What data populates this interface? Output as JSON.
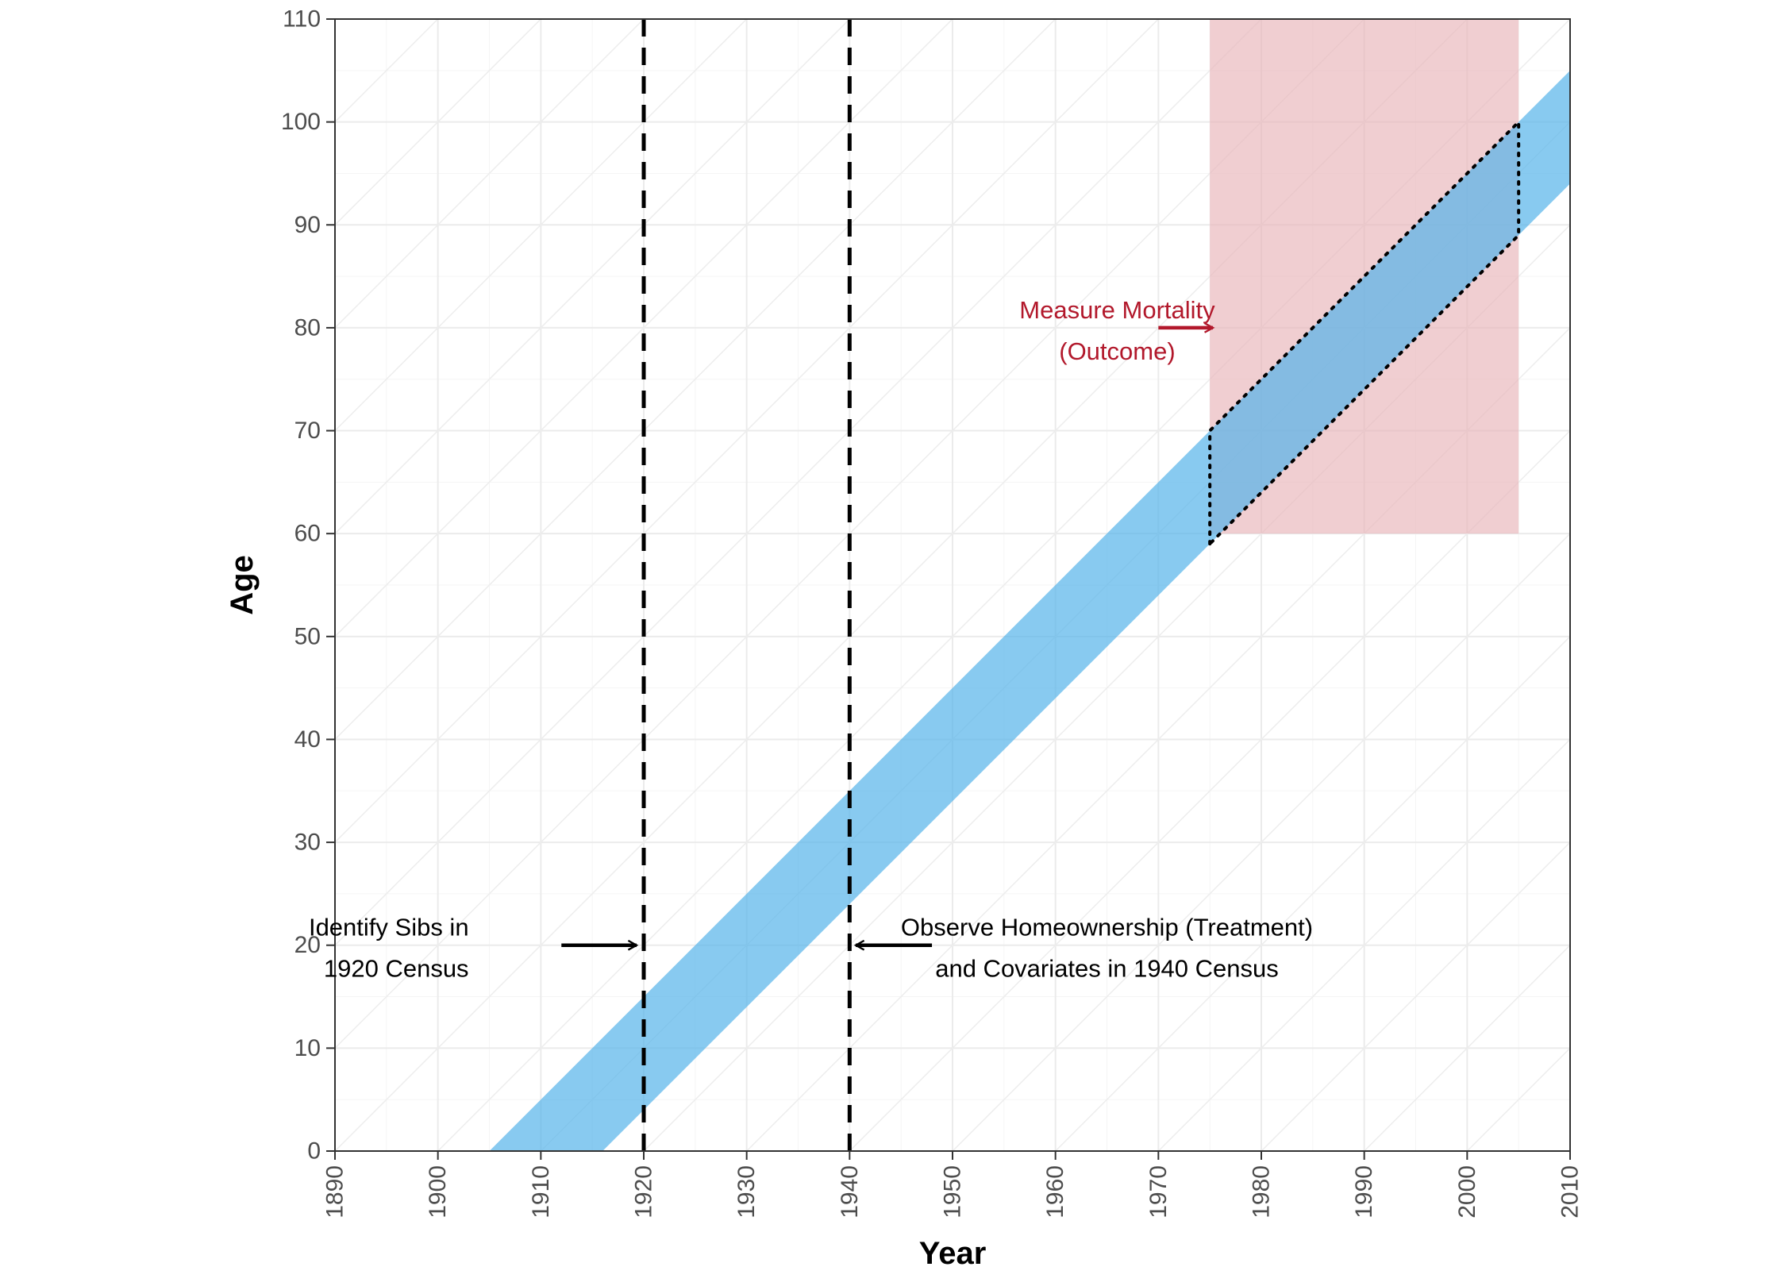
{
  "chart_data": {
    "type": "area",
    "title": "",
    "xlabel": "Year",
    "ylabel": "Age",
    "xlim": [
      1890,
      2010
    ],
    "ylim": [
      0,
      110
    ],
    "x_ticks": [
      1890,
      1900,
      1910,
      1920,
      1930,
      1940,
      1950,
      1960,
      1970,
      1980,
      1990,
      2000,
      2010
    ],
    "y_ticks": [
      0,
      10,
      20,
      30,
      40,
      50,
      60,
      70,
      80,
      90,
      100,
      110
    ],
    "grid": true,
    "legend": "none",
    "cohort_band": {
      "birth_year_start": 1905,
      "birth_year_end": 1916,
      "color": "#56B4E9"
    },
    "outcome_window": {
      "x": [
        1975,
        2005
      ],
      "y": [
        60,
        110
      ],
      "color": "#E8B4B8"
    },
    "observed_outcome_region": {
      "vertices": [
        [
          1975,
          59
        ],
        [
          1975,
          70
        ],
        [
          2005,
          100
        ],
        [
          2005,
          89
        ]
      ]
    },
    "vertical_lines": [
      {
        "x": 1920,
        "style": "dashed"
      },
      {
        "x": 1940,
        "style": "dashed"
      }
    ],
    "annotations": [
      {
        "id": "sibs",
        "lines": [
          "Identify Sibs in",
          "1920 Census"
        ],
        "x": 1903,
        "y": 20,
        "align": "end",
        "arrow_from": [
          1912,
          20
        ],
        "arrow_to": [
          1919.3,
          20
        ],
        "color": "#000000"
      },
      {
        "id": "homeownership",
        "lines": [
          "Observe Homeownership (Treatment)",
          "and Covariates in 1940 Census"
        ],
        "x": 1965,
        "y": 20,
        "align": "middle",
        "arrow_from": [
          1948,
          20
        ],
        "arrow_to": [
          1940.6,
          20
        ],
        "color": "#000000"
      },
      {
        "id": "mortality",
        "lines": [
          "Measure Mortality",
          "(Outcome)"
        ],
        "x": 1966,
        "y": 80,
        "align": "middle",
        "arrow_from": [
          1970,
          80
        ],
        "arrow_to": [
          1975.3,
          80
        ],
        "color": "#B2182B"
      }
    ]
  }
}
